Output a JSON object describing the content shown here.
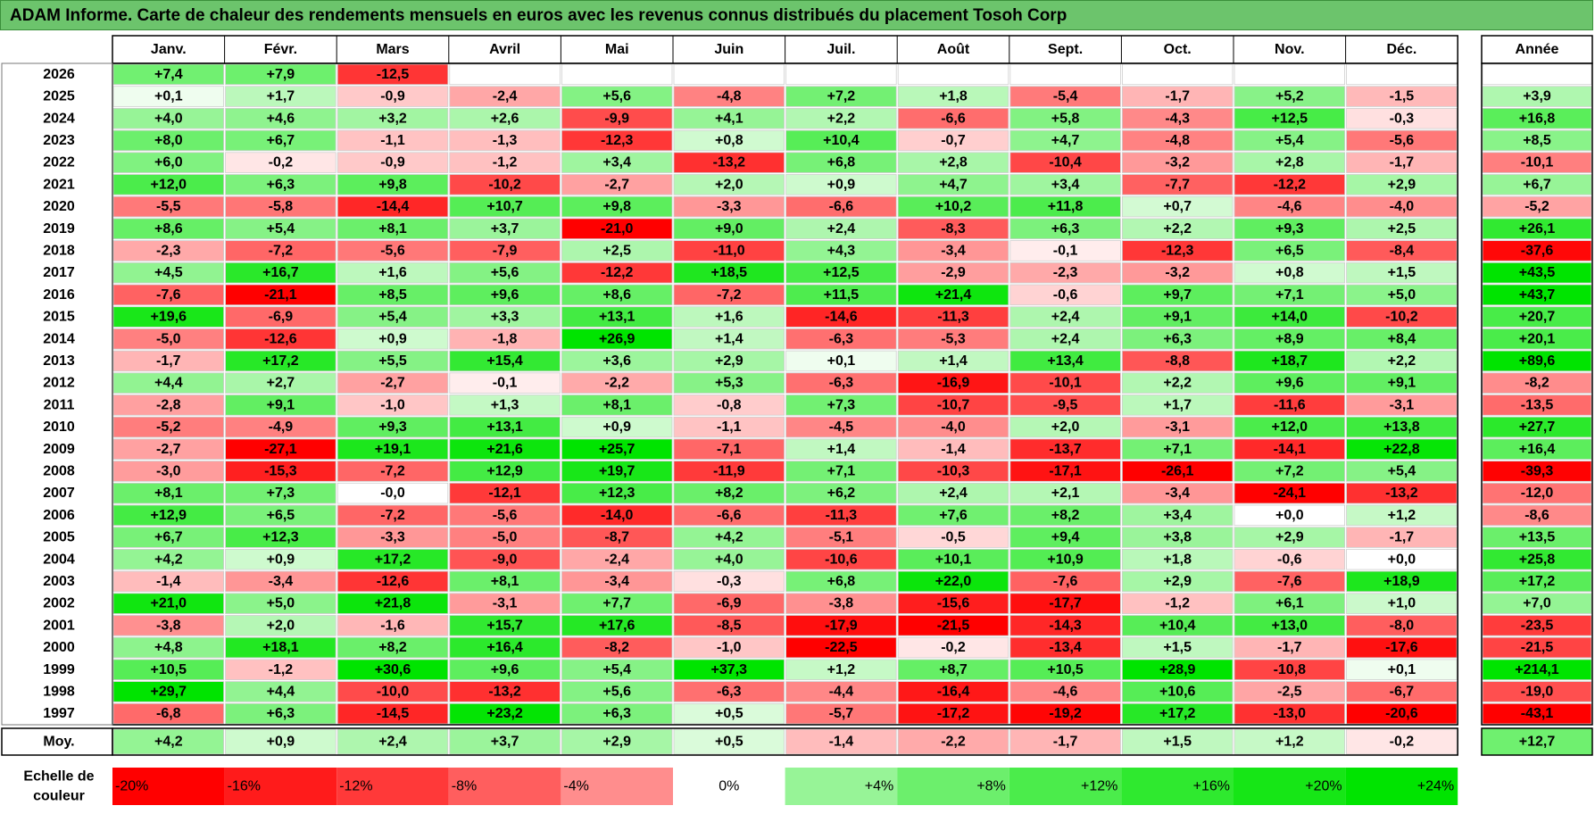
{
  "title": "ADAM Informe. Carte de chaleur des rendements mensuels en euros avec les revenus connus distribués du placement Tosoh Corp",
  "chart_data": {
    "type": "heatmap",
    "title": "ADAM Informe. Carte de chaleur des rendements mensuels en euros avec les revenus connus distribués du placement Tosoh Corp",
    "columns": [
      "Janv.",
      "Févr.",
      "Mars",
      "Avril",
      "Mai",
      "Juin",
      "Juil.",
      "Août",
      "Sept.",
      "Oct.",
      "Nov.",
      "Déc."
    ],
    "year_column_label": "Année",
    "rows": [
      {
        "year": "2026",
        "values": [
          "+7,4",
          "+7,9",
          "-12,5",
          "",
          "",
          "",
          "",
          "",
          "",
          "",
          "",
          ""
        ],
        "annual": ""
      },
      {
        "year": "2025",
        "values": [
          "+0,1",
          "+1,7",
          "-0,9",
          "-2,4",
          "+5,6",
          "-4,8",
          "+7,2",
          "+1,8",
          "-5,4",
          "-1,7",
          "+5,2",
          "-1,5"
        ],
        "annual": "+3,9"
      },
      {
        "year": "2024",
        "values": [
          "+4,0",
          "+4,6",
          "+3,2",
          "+2,6",
          "-9,9",
          "+4,1",
          "+2,2",
          "-6,6",
          "+5,8",
          "-4,3",
          "+12,5",
          "-0,3"
        ],
        "annual": "+16,8"
      },
      {
        "year": "2023",
        "values": [
          "+8,0",
          "+6,7",
          "-1,1",
          "-1,3",
          "-12,3",
          "+0,8",
          "+10,4",
          "-0,7",
          "+4,7",
          "-4,8",
          "+5,4",
          "-5,6"
        ],
        "annual": "+8,5"
      },
      {
        "year": "2022",
        "values": [
          "+6,0",
          "-0,2",
          "-0,9",
          "-1,2",
          "+3,4",
          "-13,2",
          "+6,8",
          "+2,8",
          "-10,4",
          "-3,2",
          "+2,8",
          "-1,7"
        ],
        "annual": "-10,1"
      },
      {
        "year": "2021",
        "values": [
          "+12,0",
          "+6,3",
          "+9,8",
          "-10,2",
          "-2,7",
          "+2,0",
          "+0,9",
          "+4,7",
          "+3,4",
          "-7,7",
          "-12,2",
          "+2,9"
        ],
        "annual": "+6,7"
      },
      {
        "year": "2020",
        "values": [
          "-5,5",
          "-5,8",
          "-14,4",
          "+10,7",
          "+9,8",
          "-3,3",
          "-6,6",
          "+10,2",
          "+11,8",
          "+0,7",
          "-4,6",
          "-4,0"
        ],
        "annual": "-5,2"
      },
      {
        "year": "2019",
        "values": [
          "+8,6",
          "+5,4",
          "+8,1",
          "+3,7",
          "-21,0",
          "+9,0",
          "+2,4",
          "-8,3",
          "+6,3",
          "+2,2",
          "+9,3",
          "+2,5"
        ],
        "annual": "+26,1"
      },
      {
        "year": "2018",
        "values": [
          "-2,3",
          "-7,2",
          "-5,6",
          "-7,9",
          "+2,5",
          "-11,0",
          "+4,3",
          "-3,4",
          "-0,1",
          "-12,3",
          "+6,5",
          "-8,4"
        ],
        "annual": "-37,6"
      },
      {
        "year": "2017",
        "values": [
          "+4,5",
          "+16,7",
          "+1,6",
          "+5,6",
          "-12,2",
          "+18,5",
          "+12,5",
          "-2,9",
          "-2,3",
          "-3,2",
          "+0,8",
          "+1,5"
        ],
        "annual": "+43,5"
      },
      {
        "year": "2016",
        "values": [
          "-7,6",
          "-21,1",
          "+8,5",
          "+9,6",
          "+8,6",
          "-7,2",
          "+11,5",
          "+21,4",
          "-0,6",
          "+9,7",
          "+7,1",
          "+5,0"
        ],
        "annual": "+43,7"
      },
      {
        "year": "2015",
        "values": [
          "+19,6",
          "-6,9",
          "+5,4",
          "+3,3",
          "+13,1",
          "+1,6",
          "-14,6",
          "-11,3",
          "+2,4",
          "+9,1",
          "+14,0",
          "-10,2"
        ],
        "annual": "+20,7"
      },
      {
        "year": "2014",
        "values": [
          "-5,0",
          "-12,6",
          "+0,9",
          "-1,8",
          "+26,9",
          "+1,4",
          "-6,3",
          "-5,3",
          "+2,4",
          "+6,3",
          "+8,9",
          "+8,4"
        ],
        "annual": "+20,1"
      },
      {
        "year": "2013",
        "values": [
          "-1,7",
          "+17,2",
          "+5,5",
          "+15,4",
          "+3,6",
          "+2,9",
          "+0,1",
          "+1,4",
          "+13,4",
          "-8,8",
          "+18,7",
          "+2,2"
        ],
        "annual": "+89,6"
      },
      {
        "year": "2012",
        "values": [
          "+4,4",
          "+2,7",
          "-2,7",
          "-0,1",
          "-2,2",
          "+5,3",
          "-6,3",
          "-16,9",
          "-10,1",
          "+2,2",
          "+9,6",
          "+9,1"
        ],
        "annual": "-8,2"
      },
      {
        "year": "2011",
        "values": [
          "-2,8",
          "+9,1",
          "-1,0",
          "+1,3",
          "+8,1",
          "-0,8",
          "+7,3",
          "-10,7",
          "-9,5",
          "+1,7",
          "-11,6",
          "-3,1"
        ],
        "annual": "-13,5"
      },
      {
        "year": "2010",
        "values": [
          "-5,2",
          "-4,9",
          "+9,3",
          "+13,1",
          "+0,9",
          "-1,1",
          "-4,5",
          "-4,0",
          "+2,0",
          "-3,1",
          "+12,0",
          "+13,8"
        ],
        "annual": "+27,7"
      },
      {
        "year": "2009",
        "values": [
          "-2,7",
          "-27,1",
          "+19,1",
          "+21,6",
          "+25,7",
          "-7,1",
          "+1,4",
          "-1,4",
          "-13,7",
          "+7,1",
          "-14,1",
          "+22,8"
        ],
        "annual": "+16,4"
      },
      {
        "year": "2008",
        "values": [
          "-3,0",
          "-15,3",
          "-7,2",
          "+12,9",
          "+19,7",
          "-11,9",
          "+7,1",
          "-10,3",
          "-17,1",
          "-26,1",
          "+7,2",
          "+5,4"
        ],
        "annual": "-39,3"
      },
      {
        "year": "2007",
        "values": [
          "+8,1",
          "+7,3",
          "-0,0",
          "-12,1",
          "+12,3",
          "+8,2",
          "+6,2",
          "+2,4",
          "+2,1",
          "-3,4",
          "-24,1",
          "-13,2"
        ],
        "annual": "-12,0"
      },
      {
        "year": "2006",
        "values": [
          "+12,9",
          "+6,5",
          "-7,2",
          "-5,6",
          "-14,0",
          "-6,6",
          "-11,3",
          "+7,6",
          "+8,2",
          "+3,4",
          "+0,0",
          "+1,2"
        ],
        "annual": "-8,6"
      },
      {
        "year": "2005",
        "values": [
          "+6,7",
          "+12,3",
          "-3,3",
          "-5,0",
          "-8,7",
          "+4,2",
          "-5,1",
          "-0,5",
          "+9,4",
          "+3,8",
          "+2,9",
          "-1,7"
        ],
        "annual": "+13,5"
      },
      {
        "year": "2004",
        "values": [
          "+4,2",
          "+0,9",
          "+17,2",
          "-9,0",
          "-2,4",
          "+4,0",
          "-10,6",
          "+10,1",
          "+10,9",
          "+1,8",
          "-0,6",
          "+0,0"
        ],
        "annual": "+25,8"
      },
      {
        "year": "2003",
        "values": [
          "-1,4",
          "-3,4",
          "-12,6",
          "+8,1",
          "-3,4",
          "-0,3",
          "+6,8",
          "+22,0",
          "-7,6",
          "+2,9",
          "-7,6",
          "+18,9"
        ],
        "annual": "+17,2"
      },
      {
        "year": "2002",
        "values": [
          "+21,0",
          "+5,0",
          "+21,8",
          "-3,1",
          "+7,7",
          "-6,9",
          "-3,8",
          "-15,6",
          "-17,7",
          "-1,2",
          "+6,1",
          "+1,0"
        ],
        "annual": "+7,0"
      },
      {
        "year": "2001",
        "values": [
          "-3,8",
          "+2,0",
          "-1,6",
          "+15,7",
          "+17,6",
          "-8,5",
          "-17,9",
          "-21,5",
          "-14,3",
          "+10,4",
          "+13,0",
          "-8,0"
        ],
        "annual": "-23,5"
      },
      {
        "year": "2000",
        "values": [
          "+4,8",
          "+18,1",
          "+8,2",
          "+16,4",
          "-8,2",
          "-1,0",
          "-22,5",
          "-0,2",
          "-13,4",
          "+1,5",
          "-1,7",
          "-17,6"
        ],
        "annual": "-21,5"
      },
      {
        "year": "1999",
        "values": [
          "+10,5",
          "-1,2",
          "+30,6",
          "+9,6",
          "+5,4",
          "+37,3",
          "+1,2",
          "+8,7",
          "+10,5",
          "+28,9",
          "-10,8",
          "+0,1"
        ],
        "annual": "+214,1"
      },
      {
        "year": "1998",
        "values": [
          "+29,7",
          "+4,4",
          "-10,0",
          "-13,2",
          "+5,6",
          "-6,3",
          "-4,4",
          "-16,4",
          "-4,6",
          "+10,6",
          "-2,5",
          "-6,7"
        ],
        "annual": "-19,0"
      },
      {
        "year": "1997",
        "values": [
          "-6,8",
          "+6,3",
          "-14,5",
          "+23,2",
          "+6,3",
          "+0,5",
          "-5,7",
          "-17,2",
          "-19,2",
          "+17,2",
          "-13,0",
          "-20,6"
        ],
        "annual": "-43,1"
      }
    ],
    "average_row": {
      "label": "Moy.",
      "values": [
        "+4,2",
        "+0,9",
        "+2,4",
        "+3,7",
        "+2,9",
        "+0,5",
        "-1,4",
        "-2,2",
        "-1,7",
        "+1,5",
        "+1,2",
        "-0,2"
      ],
      "annual": "+12,7"
    },
    "color_scale": {
      "label_line1": "Echelle de",
      "label_line2": "couleur",
      "stops": [
        "-20%",
        "-16%",
        "-12%",
        "-8%",
        "-4%",
        "0%",
        "+4%",
        "+8%",
        "+12%",
        "+16%",
        "+20%",
        "+24%"
      ],
      "stop_values": [
        -20,
        -16,
        -12,
        -8,
        -4,
        0,
        4,
        8,
        12,
        16,
        20,
        24
      ]
    },
    "colors": {
      "negative_max": "#ff0000",
      "neutral": "#ffffff",
      "positive_max": "#00e400",
      "title_bar": "#6cc46c"
    }
  }
}
